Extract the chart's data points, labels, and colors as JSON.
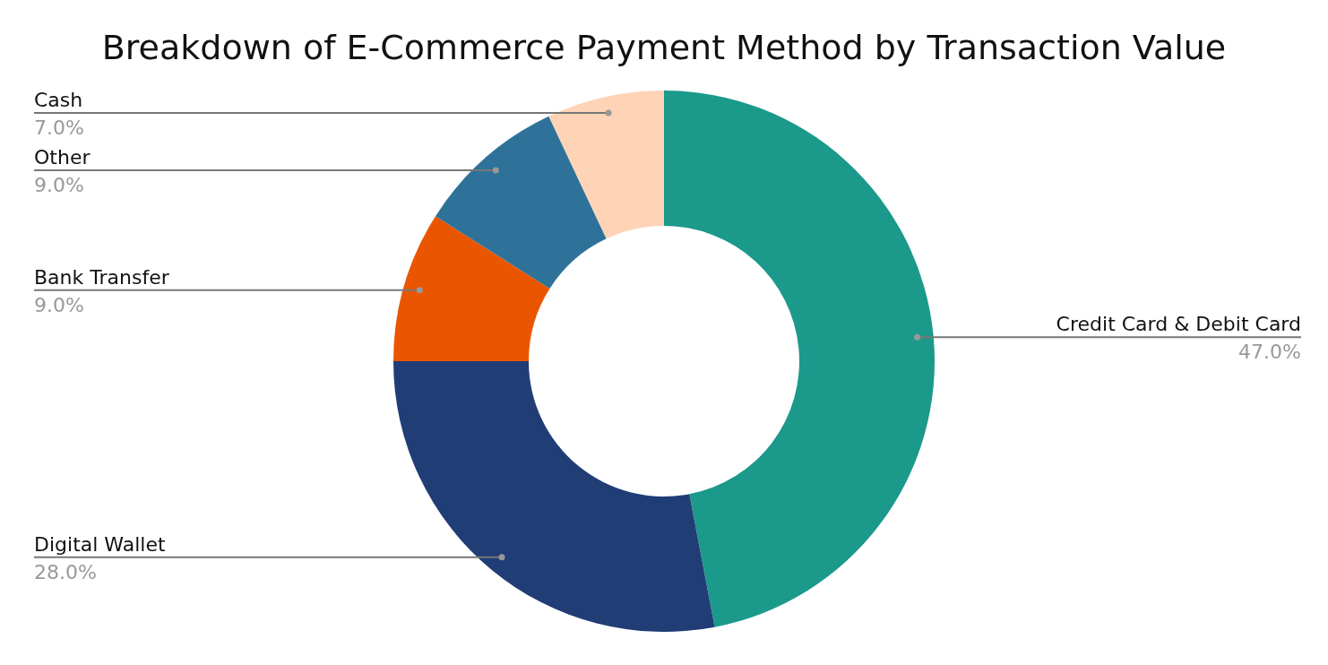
{
  "chart_data": {
    "type": "donut",
    "title": "Breakdown of E-Commerce Payment Method by Transaction Value",
    "categories": [
      "Credit Card & Debit Card",
      "Digital Wallet",
      "Bank Transfer",
      "Other",
      "Cash"
    ],
    "values": [
      47,
      28,
      9,
      9,
      7
    ],
    "colors": [
      "#1b998b",
      "#213d76",
      "#ea5600",
      "#2e7299",
      "#fed3b6"
    ],
    "value_labels": [
      "47.0%",
      "28.0%",
      "9.0%",
      "9.0%",
      "7.0%"
    ]
  }
}
